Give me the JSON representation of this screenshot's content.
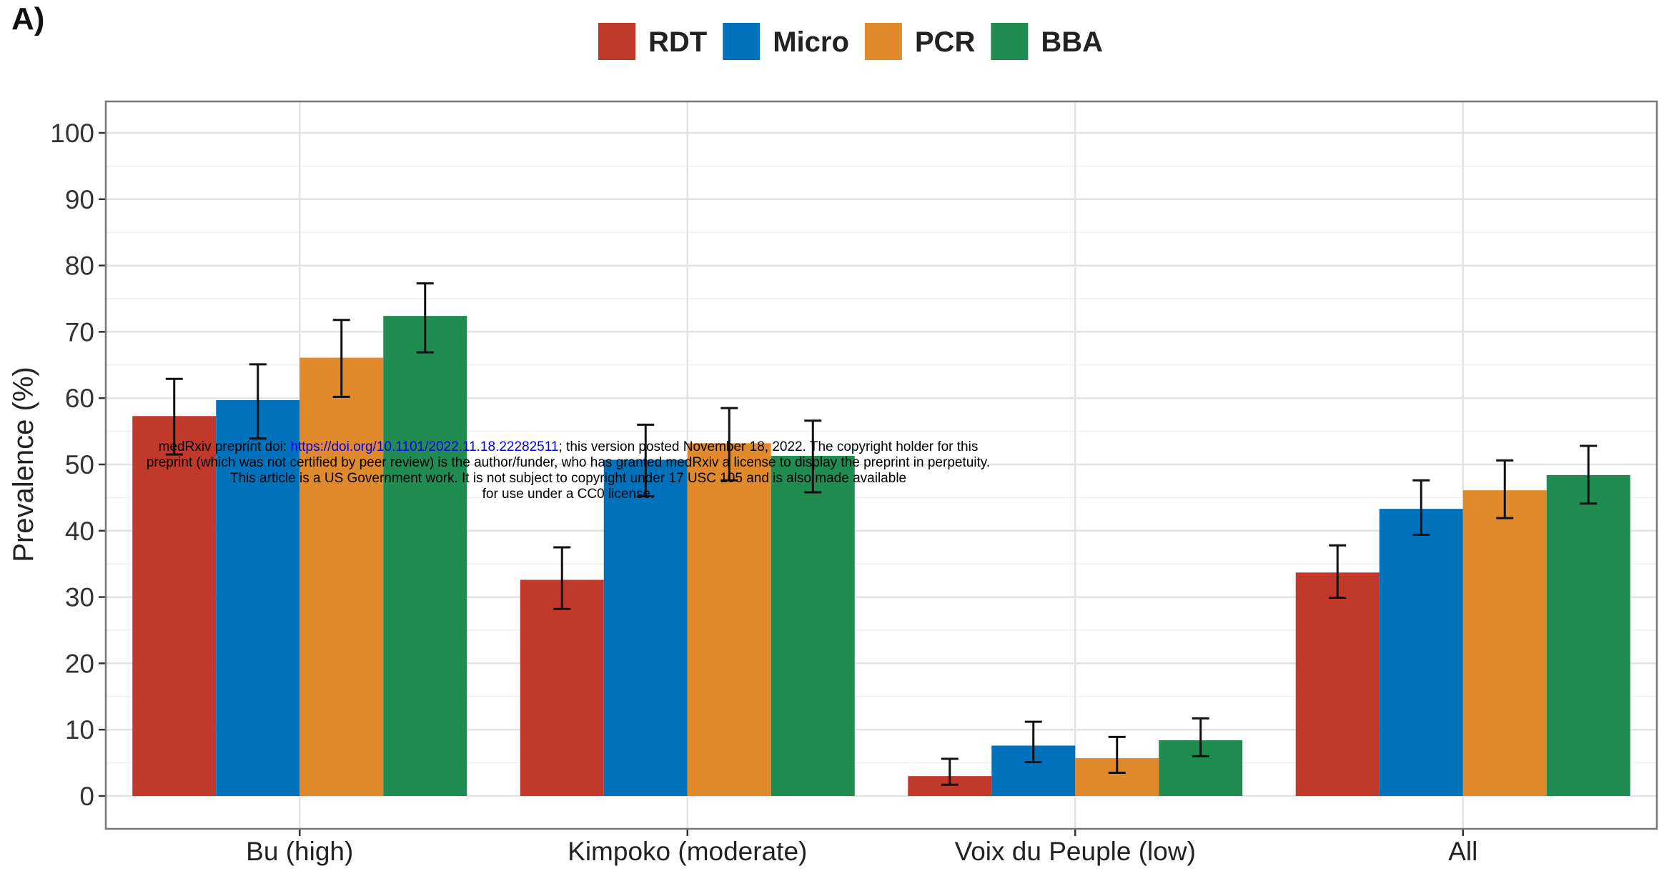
{
  "panel_label": "A)",
  "watermark": {
    "line1_pre": "medRxiv preprint doi: ",
    "doi": "https://doi.org/10.1101/2022.11.18.22282511",
    "line1_post": "; this version posted November 18, 2022. The copyright holder for this",
    "line2": "preprint (which was not certified by peer review) is the author/funder, who has granted medRxiv a license to display the preprint in perpetuity.",
    "line3": "This article is a US Government work. It is not subject to copyright under 17 USC 105 and is also made available",
    "line4": "for use under a CC0 license."
  },
  "chart_data": {
    "type": "bar",
    "ylabel": "Prevalence (%)",
    "xlabel": "",
    "ylim": [
      0,
      100
    ],
    "yticks": [
      0,
      10,
      20,
      30,
      40,
      50,
      60,
      70,
      80,
      90,
      100
    ],
    "grid": true,
    "legend_position": "top",
    "categories": [
      "Bu (high)",
      "Kimpoko (moderate)",
      "Voix du Peuple (low)",
      "All"
    ],
    "series": [
      {
        "name": "RDT",
        "color": "#c0392b",
        "values": [
          57.3,
          32.6,
          3.0,
          33.7
        ],
        "error_low": [
          51.5,
          28.2,
          1.7,
          29.9
        ],
        "error_high": [
          62.9,
          37.5,
          5.6,
          37.8
        ]
      },
      {
        "name": "Micro",
        "color": "#0072bb",
        "values": [
          59.7,
          50.7,
          7.6,
          43.3
        ],
        "error_low": [
          53.9,
          45.2,
          5.1,
          39.4
        ],
        "error_high": [
          65.1,
          56.0,
          11.2,
          47.6
        ]
      },
      {
        "name": "PCR",
        "color": "#e08a2c",
        "values": [
          66.1,
          53.2,
          5.7,
          46.1
        ],
        "error_low": [
          60.2,
          47.6,
          3.5,
          41.9
        ],
        "error_high": [
          71.8,
          58.5,
          8.9,
          50.6
        ]
      },
      {
        "name": "BBA",
        "color": "#218c52",
        "values": [
          72.4,
          51.3,
          8.4,
          48.4
        ],
        "error_low": [
          66.9,
          45.8,
          6.0,
          44.1
        ],
        "error_high": [
          77.3,
          56.6,
          11.7,
          52.8
        ]
      }
    ]
  }
}
